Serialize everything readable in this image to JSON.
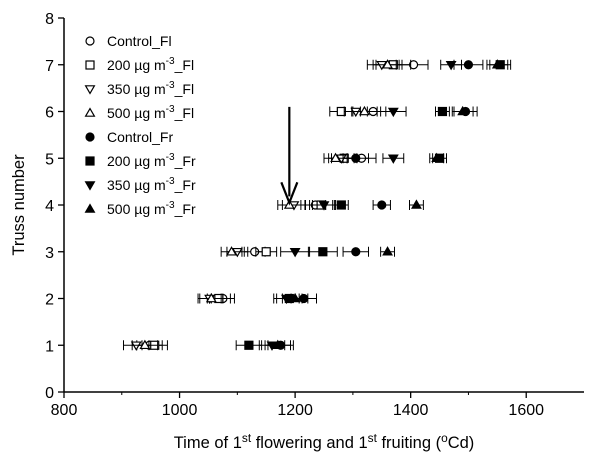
{
  "chart_data": {
    "type": "scatter",
    "xlabel": "Time of 1st flowering and 1st fruiting (oCd)",
    "xlabel_parts": [
      "Time of 1",
      "st",
      " flowering and 1",
      "st",
      " fruiting (",
      "o",
      "Cd)"
    ],
    "ylabel": "Truss number",
    "xlim": [
      800,
      1700
    ],
    "ylim": [
      0,
      8
    ],
    "xticks": [
      800,
      1000,
      1200,
      1400,
      1600
    ],
    "yticks": [
      0,
      1,
      2,
      3,
      4,
      5,
      6,
      7,
      8
    ],
    "grid": false,
    "legend_position": "top-left",
    "annotation": "arrow pointing down at truss 4 near 1190 oCd",
    "series": [
      {
        "name": "Control_Fl",
        "legend_parts": [
          "Control_Fl"
        ],
        "marker": "circle-open",
        "x": [
          948,
          1075,
          1130,
          1235,
          1315,
          1335,
          1405
        ],
        "y": [
          1,
          2,
          3,
          4,
          5,
          6,
          7
        ],
        "xerr": [
          22,
          20,
          18,
          18,
          25,
          22,
          25
        ]
      },
      {
        "name": "200 µg m-3_Fl",
        "legend_parts": [
          "200 ",
          "µ",
          "g m",
          "-3",
          "_Fl"
        ],
        "marker": "square-open",
        "x": [
          957,
          1068,
          1150,
          1245,
          1285,
          1280,
          1370
        ],
        "y": [
          1,
          2,
          3,
          4,
          5,
          6,
          7
        ],
        "xerr": [
          22,
          20,
          18,
          20,
          22,
          20,
          30
        ]
      },
      {
        "name": "350 µg m-3_Fl",
        "legend_parts": [
          "350 ",
          "µ",
          "g m",
          "-3",
          "_Fl"
        ],
        "marker": "triangle-down-open",
        "x": [
          925,
          1052,
          1100,
          1198,
          1280,
          1305,
          1350
        ],
        "y": [
          1,
          2,
          3,
          4,
          5,
          6,
          7
        ],
        "xerr": [
          22,
          20,
          18,
          20,
          22,
          20,
          25
        ]
      },
      {
        "name": "500 µg m-3_Fl",
        "legend_parts": [
          "500 ",
          "µ",
          "g m",
          "-3",
          "_Fl"
        ],
        "marker": "triangle-up-open",
        "x": [
          940,
          1055,
          1090,
          1190,
          1270,
          1320,
          1360
        ],
        "y": [
          1,
          2,
          3,
          4,
          5,
          6,
          7
        ],
        "xerr": [
          22,
          20,
          18,
          20,
          20,
          22,
          25
        ]
      },
      {
        "name": "Control_Fr",
        "legend_parts": [
          "Control_Fr"
        ],
        "marker": "circle-filled",
        "x": [
          1175,
          1215,
          1305,
          1350,
          1305,
          1495,
          1500
        ],
        "y": [
          1,
          2,
          3,
          4,
          5,
          6,
          7
        ],
        "xerr": [
          22,
          22,
          22,
          15,
          22,
          20,
          25
        ]
      },
      {
        "name": "200 µg m-3_Fr",
        "legend_parts": [
          "200 ",
          "µ",
          "g m",
          "-3",
          "_Fr"
        ],
        "marker": "square-filled",
        "x": [
          1120,
          1190,
          1248,
          1280,
          1450,
          1455,
          1555
        ],
        "y": [
          1,
          2,
          3,
          4,
          5,
          6,
          7
        ],
        "xerr": [
          22,
          22,
          25,
          12,
          12,
          12,
          18
        ]
      },
      {
        "name": "350 µg m-3_Fr",
        "legend_parts": [
          "350 ",
          "µ",
          "g m",
          "-3",
          "_Fr"
        ],
        "marker": "triangle-down-filled",
        "x": [
          1160,
          1185,
          1200,
          1250,
          1370,
          1370,
          1470
        ],
        "y": [
          1,
          2,
          3,
          4,
          5,
          6,
          7
        ],
        "xerr": [
          22,
          22,
          25,
          20,
          18,
          22,
          18
        ]
      },
      {
        "name": "500 µg m-3_Fr",
        "legend_parts": [
          "500 ",
          "µ",
          "g m",
          "-3",
          "_Fr"
        ],
        "marker": "triangle-up-filled",
        "x": [
          1170,
          1200,
          1360,
          1410,
          1445,
          1490,
          1550
        ],
        "y": [
          1,
          2,
          3,
          4,
          5,
          6,
          7
        ],
        "xerr": [
          22,
          22,
          12,
          12,
          12,
          18,
          18
        ]
      }
    ]
  }
}
